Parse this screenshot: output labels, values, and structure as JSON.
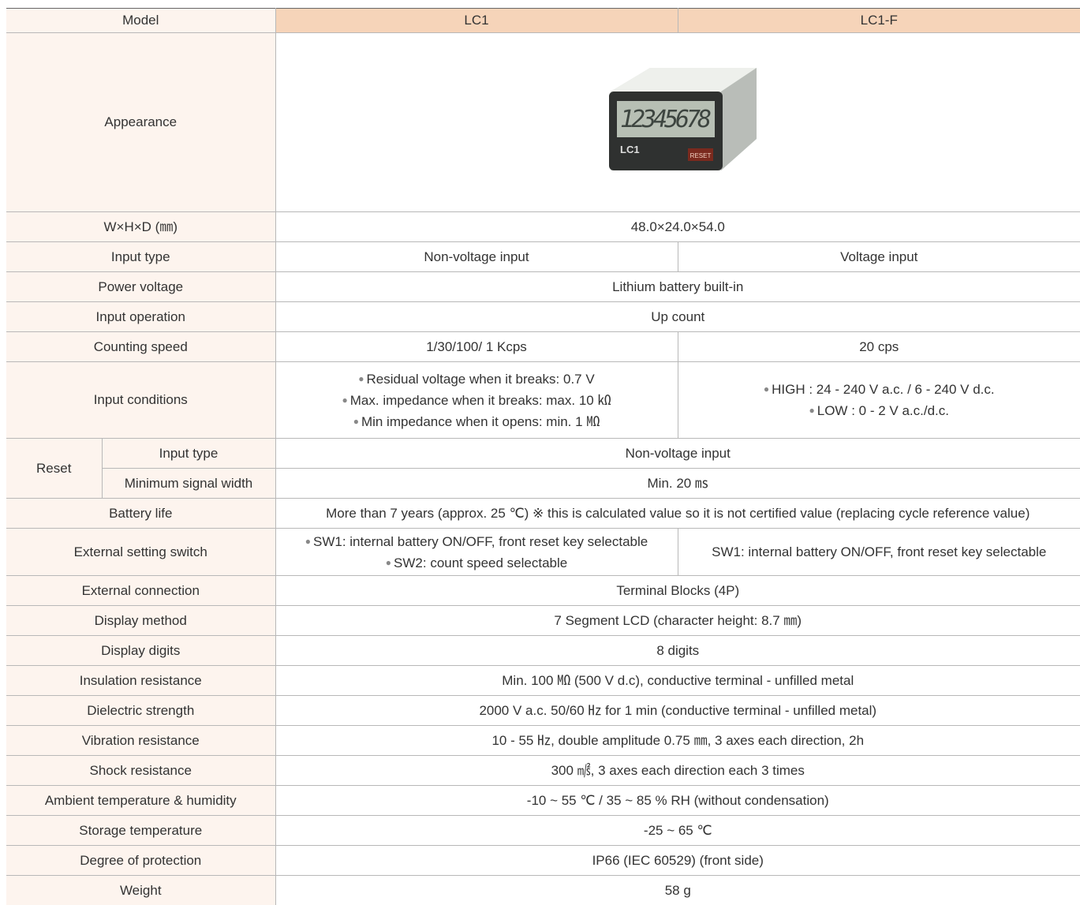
{
  "table": {
    "header": [
      "Model",
      "LC1",
      "LC1-F"
    ],
    "appearance": {
      "label": "Appearance",
      "display": "12345678",
      "model": "LC1",
      "button": "RESET"
    },
    "rows": [
      [
        "W×H×D (㎜)",
        "48.0×24.0×54.0"
      ],
      [
        "Input type",
        "Non-voltage input",
        "Voltage input"
      ],
      [
        "Power voltage",
        "Lithium battery built-in"
      ],
      [
        "Input operation",
        "Up count"
      ],
      [
        "Counting speed",
        "1/30/100/ 1 Kcps",
        "20 cps"
      ],
      [
        "Input conditions",
        [
          "Residual voltage when it breaks:  0.7 V",
          "Max. impedance when it breaks: max. 10 ㏀",
          "Min impedance when it opens: min. 1 ㏁"
        ],
        [
          "HIGH : 24 - 240 V a.c. / 6 - 240 V d.c.",
          "LOW : 0 - 2 V a.c./d.c."
        ]
      ]
    ],
    "reset": {
      "label": "Reset",
      "rows": [
        [
          "Input type",
          "Non-voltage input"
        ],
        [
          "Minimum signal width",
          "Min. 20 ㎳"
        ]
      ]
    },
    "rows_after_reset": [
      [
        "Battery life",
        "More than 7 years (approx. 25 ℃) ※ this is calculated value so it is not certified value (replacing cycle reference value)"
      ],
      [
        "External setting switch",
        [
          "SW1: internal battery ON/OFF, front reset key selectable",
          "SW2: count speed selectable"
        ],
        "SW1: internal battery ON/OFF, front reset key selectable"
      ],
      [
        "External connection",
        "Terminal Blocks (4P)"
      ],
      [
        "Display method",
        "7 Segment LCD (character height: 8.7 ㎜)"
      ],
      [
        "Display digits",
        "8 digits"
      ],
      [
        "Insulation resistance",
        "Min. 100 ㏁ (500 V d.c), conductive terminal - unfilled metal"
      ],
      [
        "Dielectric strength",
        "2000 V a.c. 50/60 ㎐ for 1 min (conductive terminal - unfilled metal)"
      ],
      [
        "Vibration resistance",
        "10 - 55 ㎐, double amplitude 0.75 ㎜, 3 axes each direction, 2h"
      ],
      [
        "Shock resistance",
        "300 ㎨, 3 axes each direction each 3 times"
      ],
      [
        "Ambient temperature & humidity",
        "-10 ~ 55 ℃ / 35 ~ 85 % RH (without condensation)"
      ],
      [
        "Storage temperature",
        "-25 ~ 65 ℃"
      ],
      [
        "Degree of protection",
        "IP66 (IEC 60529) (front side)"
      ],
      [
        "Weight",
        "58 g"
      ]
    ]
  }
}
